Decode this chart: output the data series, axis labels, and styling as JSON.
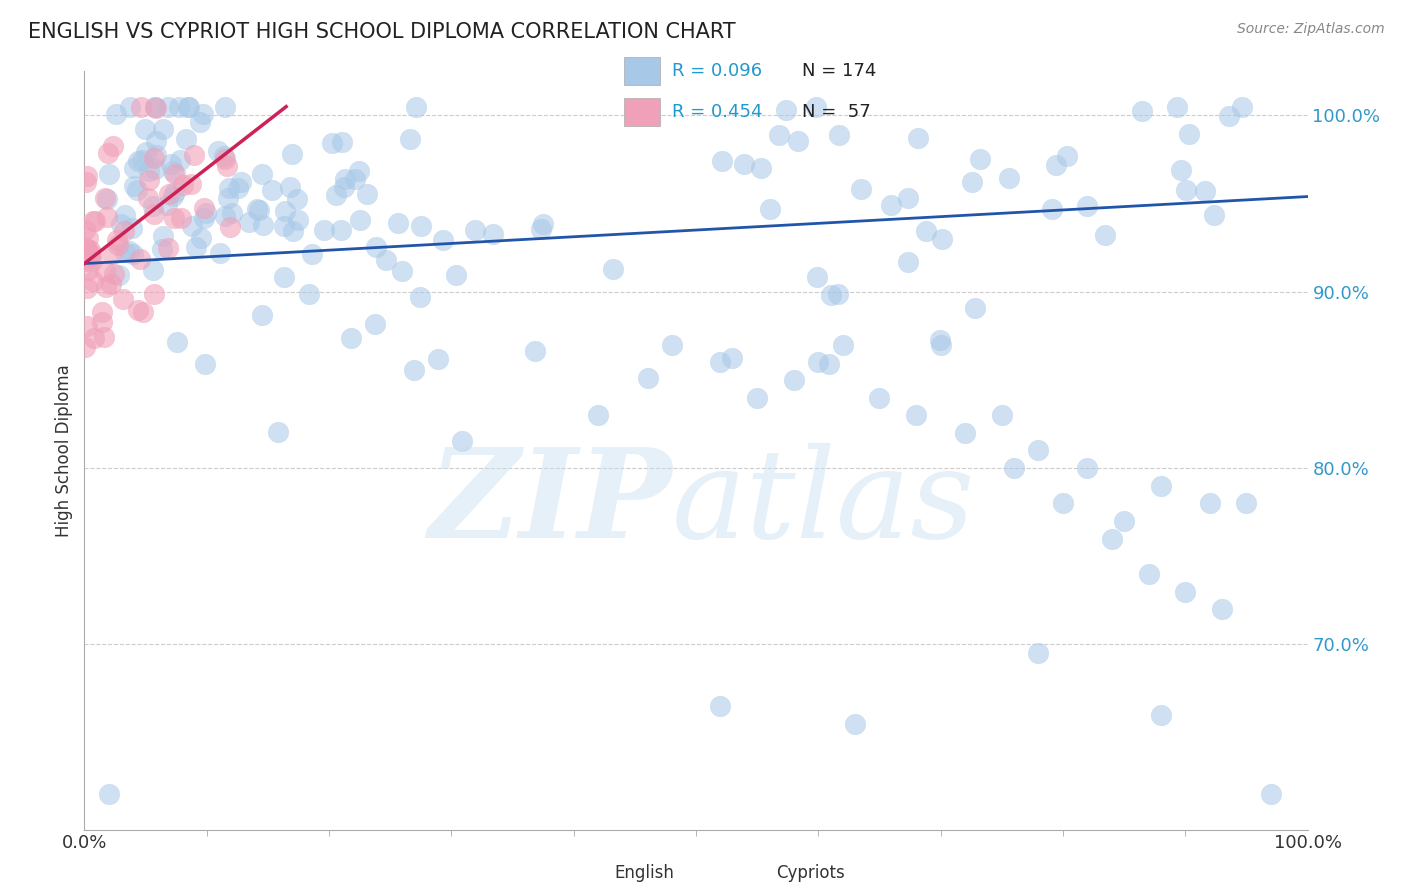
{
  "title": "ENGLISH VS CYPRIOT HIGH SCHOOL DIPLOMA CORRELATION CHART",
  "source": "Source: ZipAtlas.com",
  "ylabel": "High School Diploma",
  "blue_R": 0.096,
  "blue_N": 174,
  "pink_R": 0.454,
  "pink_N": 57,
  "blue_color": "#a8c8e8",
  "pink_color": "#f0a0b8",
  "blue_line_color": "#2255aa",
  "pink_line_color": "#cc2255",
  "legend_R_color": "#2299cc",
  "background_color": "#ffffff",
  "grid_color": "#cccccc",
  "title_color": "#222222",
  "ytick_color": "#3399cc",
  "xlim": [
    0.0,
    1.0
  ],
  "ylim": [
    0.595,
    1.025
  ],
  "ytick_vals": [
    0.7,
    0.8,
    0.9,
    1.0
  ],
  "ytick_labels": [
    "70.0%",
    "80.0%",
    "90.0%",
    "100.0%"
  ],
  "blue_line_x": [
    0.0,
    1.0
  ],
  "blue_line_y": [
    0.916,
    0.954
  ],
  "pink_line_x": [
    0.0,
    0.165
  ],
  "pink_line_y": [
    0.916,
    1.005
  ]
}
